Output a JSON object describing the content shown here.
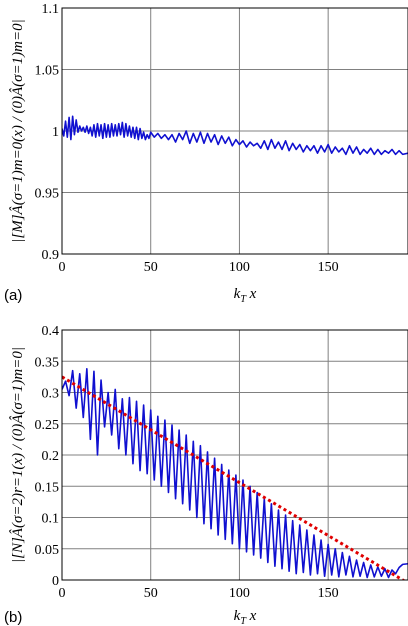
{
  "chart_data": [
    {
      "type": "line",
      "panel_label": "(a)",
      "xlabel": "k_T x",
      "ylabel": "|[M]Â(σ=1)m=0(x) / (0)Â(σ=1)m=0|",
      "xlim": [
        0,
        195
      ],
      "ylim": [
        0.9,
        1.1
      ],
      "xticks": [
        0,
        50,
        100,
        150
      ],
      "yticks": [
        "0.9",
        "0.95",
        "1",
        "1.05",
        "1.1"
      ],
      "grid": true,
      "series": [
        {
          "color": "#1010d0",
          "x": [
            0,
            1,
            2,
            3,
            4,
            5,
            6,
            7,
            8,
            9,
            10,
            11,
            12,
            13,
            14,
            15,
            16,
            17,
            18,
            19,
            20,
            21,
            22,
            23,
            24,
            25,
            26,
            27,
            28,
            29,
            30,
            31,
            32,
            33,
            34,
            35,
            36,
            37,
            38,
            39,
            40,
            41,
            42,
            43,
            44,
            45,
            46,
            47,
            48,
            49,
            50,
            52,
            54,
            56,
            58,
            60,
            62,
            64,
            66,
            68,
            70,
            72,
            74,
            76,
            78,
            80,
            82,
            84,
            86,
            88,
            90,
            92,
            94,
            96,
            98,
            100,
            102,
            104,
            106,
            108,
            110,
            112,
            114,
            116,
            118,
            120,
            122,
            124,
            126,
            128,
            130,
            132,
            134,
            136,
            138,
            140,
            142,
            144,
            146,
            148,
            150,
            152,
            154,
            156,
            158,
            160,
            162,
            164,
            166,
            168,
            170,
            172,
            174,
            176,
            178,
            180,
            182,
            184,
            186,
            188,
            190,
            192,
            195
          ],
          "y": [
            1.002,
            0.996,
            1.008,
            0.995,
            1.011,
            0.993,
            1.012,
            0.997,
            1.009,
            0.999,
            1.004,
            1.0,
            1.003,
            0.999,
            1.004,
            0.998,
            1.003,
            0.996,
            1.005,
            0.995,
            1.006,
            0.996,
            1.005,
            0.994,
            1.006,
            0.995,
            1.005,
            0.995,
            1.006,
            0.996,
            1.005,
            0.996,
            1.006,
            0.997,
            1.007,
            0.995,
            1.006,
            0.996,
            1.004,
            0.995,
            1.003,
            0.994,
            1.003,
            0.993,
            1.002,
            0.994,
            0.999,
            0.993,
            0.997,
            0.994,
            0.999,
            0.995,
            0.998,
            0.994,
            0.997,
            0.993,
            0.997,
            0.991,
            0.998,
            0.993,
            1.0,
            0.99,
            0.998,
            0.991,
            0.999,
            0.99,
            0.998,
            0.991,
            0.997,
            0.989,
            0.996,
            0.99,
            0.995,
            0.988,
            0.993,
            0.989,
            0.992,
            0.987,
            0.991,
            0.988,
            0.99,
            0.986,
            0.992,
            0.985,
            0.993,
            0.986,
            0.991,
            0.985,
            0.992,
            0.984,
            0.99,
            0.985,
            0.989,
            0.983,
            0.988,
            0.984,
            0.988,
            0.982,
            0.988,
            0.983,
            0.989,
            0.982,
            0.987,
            0.983,
            0.986,
            0.981,
            0.988,
            0.982,
            0.987,
            0.981,
            0.985,
            0.982,
            0.986,
            0.981,
            0.985,
            0.981,
            0.984,
            0.982,
            0.985,
            0.981,
            0.984,
            0.981,
            0.982
          ]
        }
      ]
    },
    {
      "type": "line",
      "panel_label": "(b)",
      "xlabel": "k_T x",
      "ylabel": "|[N]Â(σ=2)r=1(x) / (0)Â(σ=1)m=0|",
      "xlim": [
        0,
        195
      ],
      "ylim": [
        0,
        0.4
      ],
      "xticks": [
        0,
        50,
        100,
        150
      ],
      "yticks": [
        "0",
        "0.05",
        "0.1",
        "0.15",
        "0.2",
        "0.25",
        "0.3",
        "0.35",
        "0.4"
      ],
      "grid": true,
      "series": [
        {
          "color": "#1010d0",
          "style": "solid",
          "x": [
            0,
            2,
            4,
            6,
            8,
            10,
            12,
            14,
            16,
            18,
            20,
            22,
            24,
            26,
            28,
            30,
            32,
            34,
            36,
            38,
            40,
            42,
            44,
            46,
            48,
            50,
            52,
            54,
            56,
            58,
            60,
            62,
            64,
            66,
            68,
            70,
            72,
            74,
            76,
            78,
            80,
            82,
            84,
            86,
            88,
            90,
            92,
            94,
            96,
            98,
            100,
            102,
            104,
            106,
            108,
            110,
            112,
            114,
            116,
            118,
            120,
            122,
            124,
            126,
            128,
            130,
            132,
            134,
            136,
            138,
            140,
            142,
            144,
            146,
            148,
            150,
            152,
            154,
            156,
            158,
            160,
            162,
            164,
            166,
            168,
            170,
            172,
            174,
            176,
            178,
            180,
            182,
            184,
            186,
            188,
            190,
            192,
            195
          ],
          "y": [
            0.305,
            0.318,
            0.295,
            0.335,
            0.275,
            0.33,
            0.26,
            0.338,
            0.225,
            0.334,
            0.2,
            0.32,
            0.245,
            0.3,
            0.232,
            0.305,
            0.21,
            0.29,
            0.2,
            0.292,
            0.186,
            0.286,
            0.175,
            0.28,
            0.17,
            0.272,
            0.16,
            0.262,
            0.15,
            0.256,
            0.14,
            0.248,
            0.13,
            0.24,
            0.122,
            0.232,
            0.112,
            0.222,
            0.1,
            0.215,
            0.09,
            0.205,
            0.082,
            0.195,
            0.072,
            0.185,
            0.065,
            0.176,
            0.058,
            0.168,
            0.05,
            0.16,
            0.045,
            0.15,
            0.04,
            0.14,
            0.035,
            0.13,
            0.028,
            0.122,
            0.022,
            0.112,
            0.018,
            0.104,
            0.014,
            0.095,
            0.01,
            0.088,
            0.012,
            0.08,
            0.008,
            0.072,
            0.01,
            0.064,
            0.006,
            0.057,
            0.008,
            0.05,
            0.005,
            0.044,
            0.008,
            0.038,
            0.005,
            0.032,
            0.006,
            0.028,
            0.004,
            0.024,
            0.005,
            0.021,
            0.006,
            0.018,
            0.004,
            0.016,
            0.01,
            0.02,
            0.025,
            0.026
          ]
        },
        {
          "color": "#e00000",
          "style": "dotted",
          "x": [
            0,
            195
          ],
          "y": [
            0.325,
            -0.005
          ]
        }
      ]
    }
  ]
}
